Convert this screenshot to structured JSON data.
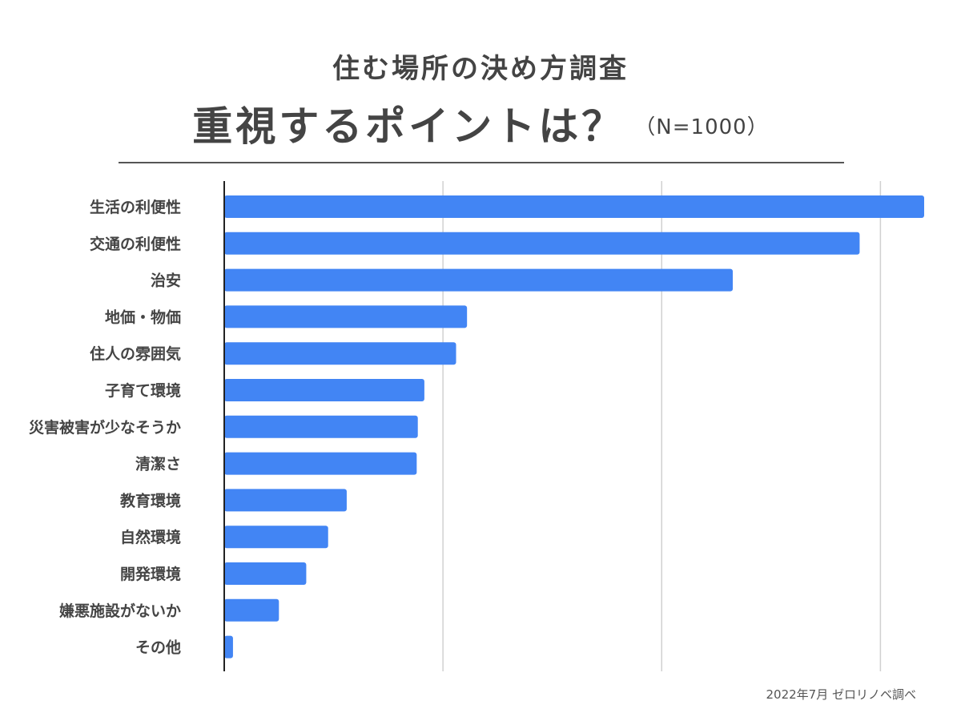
{
  "header": {
    "title_line1": "住む場所の決め方調査",
    "title_line2": "重視するポイントは？",
    "sample_size": "（N=1000）"
  },
  "footnote": "2022年7月 ゼロリノベ調べ",
  "colors": {
    "bar": "#4285f4",
    "grid": "#d0d0d0",
    "axis": "#222222",
    "text": "#444444"
  },
  "chart_data": {
    "type": "bar",
    "orientation": "horizontal",
    "title": "住む場所の決め方調査 重視するポイントは？",
    "xlabel": "",
    "ylabel": "",
    "xlim": [
      0,
      640
    ],
    "gridlines": [
      200,
      400,
      600
    ],
    "tick_labels_shown": false,
    "categories": [
      "生活の利便性",
      "交通の利便性",
      "治安",
      "地価・物価",
      "住人の雰囲気",
      "子育て環境",
      "災害被害が少なそうか",
      "清潔さ",
      "教育環境",
      "自然環境",
      "開発環境",
      "嫌悪施設がないか",
      "その他"
    ],
    "values": [
      640,
      581,
      465,
      222,
      212,
      183,
      177,
      176,
      112,
      95,
      75,
      50,
      8
    ]
  }
}
